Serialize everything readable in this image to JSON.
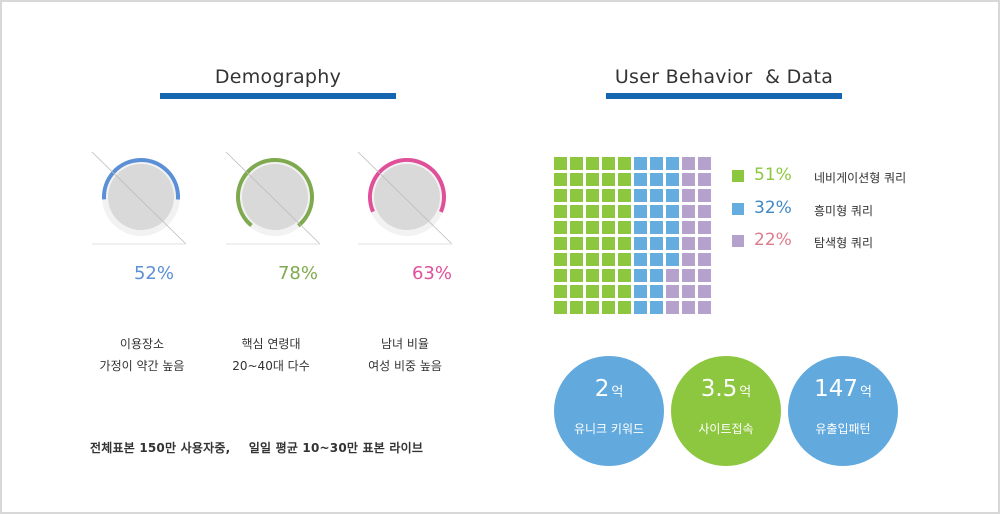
{
  "colors": {
    "title_bar": "#1565b0",
    "blue": "#5b8fd6",
    "green": "#7fa94e",
    "pink": "#e0509a",
    "waffle_green": "#8dc63f",
    "waffle_blue": "#65acdf",
    "waffle_purple": "#b4a2cc",
    "circle_blue": "#62a9de",
    "circle_green": "#8dc63f"
  },
  "demography": {
    "title": "Demography",
    "donuts": [
      {
        "percent_text": "52%",
        "value": 52,
        "color": "#5b8fd6",
        "caption_line1": "이용장소",
        "caption_line2": "가정이 약간 높음"
      },
      {
        "percent_text": "78%",
        "value": 78,
        "color": "#7fa94e",
        "caption_line1": "핵심 연령대",
        "caption_line2": "20~40대 다수"
      },
      {
        "percent_text": "63%",
        "value": 63,
        "color": "#e0509a",
        "caption_line1": "남녀 비율",
        "caption_line2": "여성 비중 높음"
      }
    ],
    "footnote_part1": "전체표본 150만 사용자중,",
    "footnote_part2": "일일 평균 10~30만 표본 라이브"
  },
  "behavior": {
    "title": "User Behavior  & Data",
    "waffle": {
      "green": 51,
      "blue": 32,
      "purple": 22
    },
    "legend": [
      {
        "percent_text": "51%",
        "label": "네비게이션형 쿼리",
        "swatch": "#8dc63f",
        "text_color": "#8dc63f"
      },
      {
        "percent_text": "32%",
        "label": "흥미형 쿼리",
        "swatch": "#65acdf",
        "text_color": "#3f88c5"
      },
      {
        "percent_text": "22%",
        "label": "탐색형 쿼리",
        "swatch": "#b4a2cc",
        "text_color": "#e07a8a"
      }
    ],
    "stats": [
      {
        "value": "2",
        "unit": "억",
        "label": "유니크 키워드",
        "color": "#62a9de"
      },
      {
        "value": "3.5",
        "unit": "억",
        "label": "사이트접속",
        "color": "#8dc63f"
      },
      {
        "value": "147",
        "unit": "억",
        "label": "유출입패턴",
        "color": "#62a9de"
      }
    ]
  }
}
